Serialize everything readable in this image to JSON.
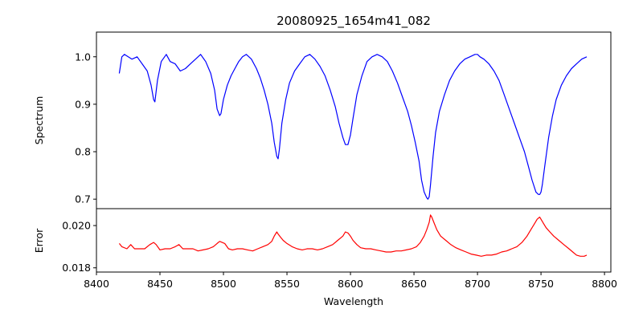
{
  "chart_data": [
    {
      "type": "line",
      "title": "20080925_1654m41_082",
      "xlabel": "",
      "ylabel": "Spectrum",
      "xlim": [
        8400,
        8805
      ],
      "ylim": [
        0.68,
        1.052
      ],
      "yticks": [
        0.7,
        0.8,
        0.9,
        1.0
      ],
      "ytick_labels": [
        "0.7",
        "0.8",
        "0.9",
        "1.0"
      ],
      "series": [
        {
          "name": "spectrum",
          "color": "#0000ff",
          "x": [
            8418,
            8420,
            8422,
            8425,
            8428,
            8432,
            8436,
            8440,
            8443,
            8445,
            8446,
            8448,
            8451,
            8455,
            8458,
            8462,
            8466,
            8470,
            8474,
            8478,
            8482,
            8486,
            8490,
            8493,
            8495,
            8497,
            8498,
            8500,
            8503,
            8506,
            8509,
            8512,
            8515,
            8518,
            8522,
            8526,
            8529,
            8532,
            8535,
            8538,
            8540,
            8542,
            8543,
            8544,
            8546,
            8549,
            8552,
            8556,
            8560,
            8564,
            8568,
            8572,
            8576,
            8580,
            8584,
            8588,
            8591,
            8594,
            8596,
            8598,
            8600,
            8602,
            8605,
            8609,
            8613,
            8617,
            8621,
            8625,
            8629,
            8633,
            8637,
            8641,
            8645,
            8648,
            8651,
            8654,
            8656,
            8658,
            8660,
            8661,
            8662,
            8663,
            8665,
            8667,
            8670,
            8674,
            8678,
            8682,
            8686,
            8690,
            8694,
            8698,
            8700,
            8702,
            8705,
            8709,
            8713,
            8717,
            8721,
            8725,
            8729,
            8733,
            8737,
            8740,
            8743,
            8746,
            8748,
            8749,
            8750,
            8751,
            8753,
            8756,
            8759,
            8762,
            8766,
            8770,
            8774,
            8778,
            8782,
            8786
          ],
          "y": [
            0.965,
            1.0,
            1.005,
            1.0,
            0.995,
            1.0,
            0.985,
            0.97,
            0.94,
            0.91,
            0.905,
            0.95,
            0.99,
            1.005,
            0.99,
            0.985,
            0.97,
            0.975,
            0.985,
            0.995,
            1.005,
            0.99,
            0.965,
            0.93,
            0.89,
            0.876,
            0.88,
            0.91,
            0.94,
            0.96,
            0.975,
            0.99,
            1.0,
            1.005,
            0.995,
            0.975,
            0.955,
            0.93,
            0.9,
            0.86,
            0.82,
            0.79,
            0.785,
            0.805,
            0.86,
            0.91,
            0.945,
            0.97,
            0.985,
            1.0,
            1.005,
            0.995,
            0.98,
            0.96,
            0.93,
            0.895,
            0.86,
            0.83,
            0.815,
            0.815,
            0.835,
            0.87,
            0.92,
            0.96,
            0.99,
            1.0,
            1.005,
            1.0,
            0.99,
            0.97,
            0.945,
            0.915,
            0.885,
            0.855,
            0.82,
            0.78,
            0.74,
            0.715,
            0.703,
            0.7,
            0.705,
            0.73,
            0.79,
            0.84,
            0.885,
            0.92,
            0.95,
            0.97,
            0.985,
            0.995,
            1.0,
            1.005,
            1.005,
            1.0,
            0.995,
            0.985,
            0.97,
            0.95,
            0.92,
            0.89,
            0.86,
            0.83,
            0.8,
            0.77,
            0.74,
            0.715,
            0.71,
            0.71,
            0.715,
            0.73,
            0.77,
            0.83,
            0.875,
            0.91,
            0.94,
            0.96,
            0.975,
            0.985,
            0.995,
            1.0
          ]
        }
      ]
    },
    {
      "type": "line",
      "title": "",
      "xlabel": "Wavelength",
      "ylabel": "Error",
      "xlim": [
        8400,
        8805
      ],
      "ylim": [
        0.0178,
        0.0208
      ],
      "xticks": [
        8400,
        8450,
        8500,
        8550,
        8600,
        8650,
        8700,
        8750,
        8800
      ],
      "xtick_labels": [
        "8400",
        "8450",
        "8500",
        "8550",
        "8600",
        "8650",
        "8700",
        "8750",
        "8800"
      ],
      "yticks": [
        0.018,
        0.02
      ],
      "ytick_labels": [
        "0.018",
        "0.020"
      ],
      "series": [
        {
          "name": "error",
          "color": "#ff0000",
          "x": [
            8418,
            8420,
            8424,
            8427,
            8430,
            8434,
            8438,
            8442,
            8445,
            8447,
            8450,
            8454,
            8458,
            8462,
            8465,
            8468,
            8472,
            8476,
            8480,
            8484,
            8488,
            8492,
            8495,
            8497,
            8499,
            8501,
            8504,
            8507,
            8511,
            8515,
            8519,
            8523,
            8527,
            8531,
            8535,
            8538,
            8540,
            8542,
            8543,
            8545,
            8547,
            8550,
            8554,
            8558,
            8562,
            8566,
            8570,
            8574,
            8578,
            8582,
            8586,
            8590,
            8594,
            8596,
            8598,
            8600,
            8602,
            8605,
            8608,
            8612,
            8616,
            8620,
            8624,
            8628,
            8632,
            8636,
            8640,
            8644,
            8648,
            8652,
            8655,
            8658,
            8660,
            8662,
            8663,
            8664,
            8666,
            8668,
            8671,
            8675,
            8679,
            8683,
            8687,
            8691,
            8695,
            8699,
            8703,
            8707,
            8711,
            8715,
            8719,
            8723,
            8727,
            8731,
            8735,
            8739,
            8742,
            8745,
            8747,
            8749,
            8750,
            8752,
            8754,
            8757,
            8760,
            8764,
            8768,
            8772,
            8775,
            8778,
            8781,
            8784,
            8786
          ],
          "y": [
            0.01915,
            0.019,
            0.0189,
            0.0191,
            0.0189,
            0.0189,
            0.0189,
            0.0191,
            0.0192,
            0.0191,
            0.01885,
            0.0189,
            0.0189,
            0.019,
            0.0191,
            0.0189,
            0.0189,
            0.0189,
            0.0188,
            0.01885,
            0.0189,
            0.019,
            0.01915,
            0.01925,
            0.0192,
            0.01915,
            0.0189,
            0.01885,
            0.0189,
            0.0189,
            0.01885,
            0.0188,
            0.0189,
            0.019,
            0.0191,
            0.01925,
            0.0195,
            0.0197,
            0.0196,
            0.01945,
            0.0193,
            0.01915,
            0.019,
            0.0189,
            0.01885,
            0.0189,
            0.0189,
            0.01885,
            0.0189,
            0.019,
            0.0191,
            0.0193,
            0.0195,
            0.0197,
            0.01965,
            0.0195,
            0.0193,
            0.0191,
            0.01895,
            0.0189,
            0.0189,
            0.01885,
            0.0188,
            0.01875,
            0.01875,
            0.0188,
            0.0188,
            0.01885,
            0.0189,
            0.019,
            0.0192,
            0.0195,
            0.0198,
            0.02015,
            0.0205,
            0.0204,
            0.0201,
            0.0198,
            0.0195,
            0.0193,
            0.0191,
            0.01895,
            0.01885,
            0.01875,
            0.01865,
            0.0186,
            0.01855,
            0.0186,
            0.0186,
            0.01865,
            0.01875,
            0.0188,
            0.0189,
            0.019,
            0.0192,
            0.0195,
            0.0198,
            0.0201,
            0.0203,
            0.0204,
            0.0203,
            0.0201,
            0.0199,
            0.0197,
            0.0195,
            0.0193,
            0.0191,
            0.0189,
            0.01875,
            0.0186,
            0.01855,
            0.01855,
            0.0186
          ]
        }
      ]
    }
  ]
}
